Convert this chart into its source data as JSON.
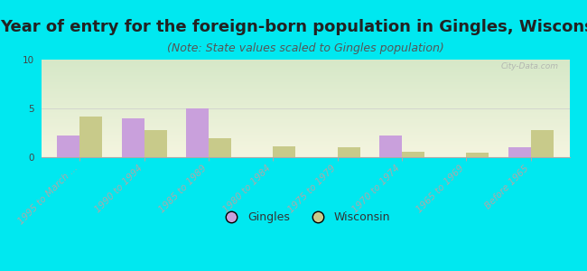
{
  "title": "Year of entry for the foreign-born population in Gingles, Wisconsin",
  "subtitle": "(Note: State values scaled to Gingles population)",
  "categories": [
    "1995 to March ...",
    "1990 to 1994",
    "1985 to 1989",
    "1980 to 1984",
    "1975 to 1979",
    "1970 to 1974",
    "1965 to 1969",
    "Before 1965"
  ],
  "gingles_values": [
    2.2,
    4.0,
    5.0,
    0.0,
    0.0,
    2.2,
    0.0,
    1.0
  ],
  "wisconsin_values": [
    4.2,
    2.8,
    1.9,
    1.1,
    1.0,
    0.6,
    0.5,
    2.8
  ],
  "gingles_color": "#c9a0dc",
  "wisconsin_color": "#c8ca8a",
  "grad_top": "#d6e8c8",
  "grad_bottom": "#f5f5e0",
  "outer_bg": "#00e8f0",
  "ylim": [
    0,
    10
  ],
  "yticks": [
    0,
    5,
    10
  ],
  "bar_width": 0.35,
  "title_fontsize": 13,
  "subtitle_fontsize": 9,
  "tick_label_fontsize": 7.5,
  "watermark": "City-Data.com"
}
